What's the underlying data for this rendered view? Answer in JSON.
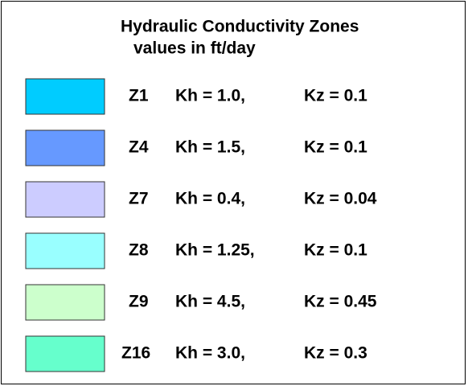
{
  "title": "Hydraulic Conductivity Zones",
  "subtitle": "values in ft/day",
  "zones": [
    {
      "zone": "Z1",
      "kh": "Kh = 1.0,",
      "kz": "Kz = 0.1",
      "color": "#00ccff"
    },
    {
      "zone": "Z4",
      "kh": "Kh = 1.5,",
      "kz": "Kz = 0.1",
      "color": "#6699ff"
    },
    {
      "zone": "Z7",
      "kh": "Kh = 0.4,",
      "kz": "Kz = 0.04",
      "color": "#ccccff"
    },
    {
      "zone": "Z8",
      "kh": "Kh = 1.25,",
      "kz": "Kz = 0.1",
      "color": "#99ffff"
    },
    {
      "zone": "Z9",
      "kh": "Kh = 4.5,",
      "kz": "Kz = 0.45",
      "color": "#ccffcc"
    },
    {
      "zone": "Z16",
      "kh": "Kh = 3.0,",
      "kz": "Kz = 0.3",
      "color": "#66ffcc"
    }
  ]
}
